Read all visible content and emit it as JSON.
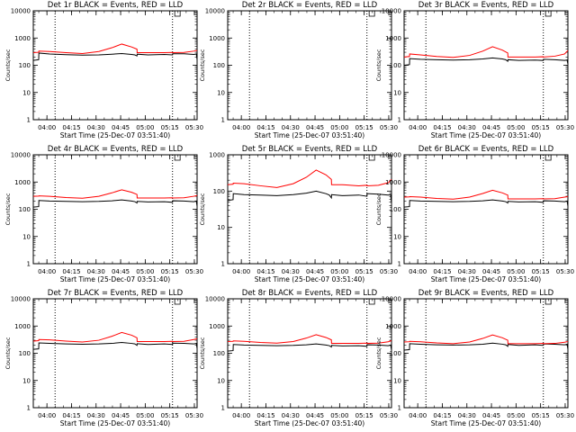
{
  "figure": {
    "background": "#ffffff"
  },
  "series_styles": {
    "events_color": "#000000",
    "lld_color": "#ff0000",
    "marker_color": "#000000"
  },
  "chart_data": [
    {
      "type": "line",
      "title": "Det 1r BLACK = Events, RED = LLD",
      "ylabel": "Counts/sec",
      "xlabel": "Start Time (25-Dec-07 03:51:40)",
      "x_tick_labels": [
        "04:00",
        "04:15",
        "04:30",
        "04:45",
        "05:00",
        "05:15",
        "05:30"
      ],
      "x_tick_minutes": [
        8.33,
        23.33,
        38.33,
        53.33,
        68.33,
        83.33,
        98.33
      ],
      "xlim": [
        0,
        100
      ],
      "y_scale": "log",
      "ylim": [
        1,
        10000
      ],
      "y_tick_labels": [
        "1",
        "10",
        "100",
        "1000",
        "10000"
      ],
      "vlines_minutes": [
        13.3,
        85.0
      ],
      "marker_minutes": 88.0,
      "series": [
        {
          "name": "Events",
          "x": [
            0,
            3.3,
            3.4,
            10,
            20,
            30,
            40,
            48,
            54,
            60,
            62,
            63.3,
            63.4,
            70,
            80,
            85,
            85.1,
            92,
            98,
            99.5,
            100
          ],
          "y": [
            150,
            160,
            280,
            260,
            245,
            235,
            240,
            255,
            270,
            250,
            240,
            220,
            255,
            240,
            250,
            240,
            265,
            265,
            250,
            260,
            160
          ]
        },
        {
          "name": "LLD",
          "x": [
            0,
            3.3,
            3.4,
            10,
            20,
            30,
            40,
            48,
            54,
            60,
            63.3,
            63.4,
            70,
            80,
            85,
            85.1,
            92,
            98,
            100
          ],
          "y": [
            290,
            300,
            330,
            320,
            290,
            270,
            320,
            440,
            600,
            470,
            390,
            290,
            290,
            290,
            295,
            290,
            295,
            330,
            350
          ]
        }
      ]
    },
    {
      "type": "line",
      "title": "Det 2r BLACK = Events, RED = LLD",
      "ylabel": "Counts/sec",
      "xlabel": "Start Time (25-Dec-07 03:51:40)",
      "x_tick_labels": [
        "04:00",
        "04:15",
        "04:30",
        "04:45",
        "05:00",
        "05:15",
        "05:30"
      ],
      "x_tick_minutes": [
        8.33,
        23.33,
        38.33,
        53.33,
        68.33,
        83.33,
        98.33
      ],
      "xlim": [
        0,
        100
      ],
      "y_scale": "log",
      "ylim": [
        1,
        10000
      ],
      "y_tick_labels": [
        "1",
        "10",
        "100",
        "1000",
        "10000"
      ],
      "vlines_minutes": [
        13.3,
        85.0
      ],
      "marker_minutes": 88.0,
      "series": []
    },
    {
      "type": "line",
      "title": "Det 3r BLACK = Events, RED = LLD",
      "ylabel": "Counts/sec",
      "xlabel": "Start Time (25-Dec-07 03:51:40)",
      "x_tick_labels": [
        "04:00",
        "04:15",
        "04:30",
        "04:45",
        "05:00",
        "05:15",
        "05:30"
      ],
      "x_tick_minutes": [
        8.33,
        23.33,
        38.33,
        53.33,
        68.33,
        83.33,
        98.33
      ],
      "xlim": [
        0,
        100
      ],
      "y_scale": "log",
      "ylim": [
        1,
        10000
      ],
      "y_tick_labels": [
        "1",
        "10",
        "100",
        "1000",
        "10000"
      ],
      "vlines_minutes": [
        13.3,
        85.0
      ],
      "marker_minutes": 88.0,
      "series": [
        {
          "name": "Events",
          "x": [
            0,
            3.3,
            3.4,
            10,
            20,
            30,
            40,
            48,
            54,
            60,
            62,
            63.3,
            63.4,
            70,
            80,
            85,
            85.1,
            92,
            98,
            99.5,
            100
          ],
          "y": [
            100,
            105,
            175,
            165,
            160,
            155,
            160,
            170,
            185,
            170,
            160,
            140,
            160,
            150,
            155,
            150,
            165,
            160,
            150,
            155,
            110
          ]
        },
        {
          "name": "LLD",
          "x": [
            0,
            3.3,
            3.4,
            10,
            20,
            30,
            40,
            48,
            54,
            60,
            63.3,
            63.4,
            70,
            80,
            85,
            85.1,
            92,
            98,
            100
          ],
          "y": [
            200,
            210,
            260,
            240,
            210,
            195,
            230,
            330,
            480,
            360,
            280,
            200,
            200,
            200,
            205,
            200,
            215,
            260,
            350
          ]
        }
      ]
    },
    {
      "type": "line",
      "title": "Det 4r BLACK = Events, RED = LLD",
      "ylabel": "Counts/sec",
      "xlabel": "Start Time (25-Dec-07 03:51:40)",
      "x_tick_labels": [
        "04:00",
        "04:15",
        "04:30",
        "04:45",
        "05:00",
        "05:15",
        "05:30"
      ],
      "x_tick_minutes": [
        8.33,
        23.33,
        38.33,
        53.33,
        68.33,
        83.33,
        98.33
      ],
      "xlim": [
        0,
        100
      ],
      "y_scale": "log",
      "ylim": [
        1,
        10000
      ],
      "y_tick_labels": [
        "1",
        "10",
        "100",
        "1000",
        "10000"
      ],
      "vlines_minutes": [
        13.3,
        85.0
      ],
      "marker_minutes": 88.0,
      "series": [
        {
          "name": "Events",
          "x": [
            0,
            3.3,
            3.4,
            10,
            20,
            30,
            40,
            48,
            54,
            60,
            62,
            63.3,
            63.4,
            70,
            80,
            85,
            85.1,
            92,
            98,
            99.5,
            100
          ],
          "y": [
            120,
            125,
            210,
            200,
            195,
            190,
            195,
            205,
            220,
            200,
            190,
            170,
            195,
            185,
            190,
            180,
            205,
            200,
            190,
            200,
            130
          ]
        },
        {
          "name": "LLD",
          "x": [
            0,
            3.3,
            3.4,
            10,
            20,
            30,
            40,
            48,
            54,
            60,
            63.3,
            63.4,
            70,
            80,
            85,
            85.1,
            92,
            98,
            100
          ],
          "y": [
            300,
            305,
            310,
            300,
            270,
            255,
            300,
            400,
            520,
            420,
            350,
            260,
            260,
            260,
            265,
            260,
            265,
            300,
            320
          ]
        }
      ]
    },
    {
      "type": "line",
      "title": "Det 5r BLACK = Events, RED = LLD",
      "ylabel": "Counts/sec",
      "xlabel": "Start Time (25-Dec-07 03:51:40)",
      "x_tick_labels": [
        "04:00",
        "04:15",
        "04:30",
        "04:45",
        "05:00",
        "05:15",
        "05:30"
      ],
      "x_tick_minutes": [
        8.33,
        23.33,
        38.33,
        53.33,
        68.33,
        83.33,
        98.33
      ],
      "xlim": [
        0,
        100
      ],
      "y_scale": "log",
      "ylim": [
        1,
        1000
      ],
      "y_tick_labels": [
        "1",
        "10",
        "100",
        "1000"
      ],
      "vlines_minutes": [
        13.3,
        85.0
      ],
      "marker_minutes": 88.0,
      "series": [
        {
          "name": "Events",
          "x": [
            0,
            3.3,
            3.4,
            10,
            20,
            30,
            40,
            48,
            54,
            60,
            62,
            63.3,
            63.4,
            70,
            80,
            85,
            85.1,
            92,
            98,
            99.5,
            100
          ],
          "y": [
            55,
            58,
            85,
            80,
            78,
            75,
            80,
            88,
            100,
            85,
            78,
            65,
            80,
            75,
            78,
            72,
            85,
            82,
            78,
            80,
            45
          ]
        },
        {
          "name": "LLD",
          "x": [
            0,
            3.3,
            3.4,
            10,
            20,
            30,
            40,
            48,
            54,
            60,
            63.3,
            63.4,
            70,
            80,
            85,
            85.1,
            92,
            98,
            100
          ],
          "y": [
            150,
            155,
            165,
            160,
            140,
            125,
            160,
            240,
            380,
            280,
            210,
            150,
            150,
            140,
            145,
            140,
            145,
            170,
            210
          ]
        }
      ]
    },
    {
      "type": "line",
      "title": "Det 6r BLACK = Events, RED = LLD",
      "ylabel": "Counts/sec",
      "xlabel": "Start Time (25-Dec-07 03:51:40)",
      "x_tick_labels": [
        "04:00",
        "04:15",
        "04:30",
        "04:45",
        "05:00",
        "05:15",
        "05:30"
      ],
      "x_tick_minutes": [
        8.33,
        23.33,
        38.33,
        53.33,
        68.33,
        83.33,
        98.33
      ],
      "xlim": [
        0,
        100
      ],
      "y_scale": "log",
      "ylim": [
        1,
        10000
      ],
      "y_tick_labels": [
        "1",
        "10",
        "100",
        "1000",
        "10000"
      ],
      "vlines_minutes": [
        13.3,
        85.0
      ],
      "marker_minutes": 88.0,
      "series": [
        {
          "name": "Events",
          "x": [
            0,
            3.3,
            3.4,
            10,
            20,
            30,
            40,
            48,
            54,
            60,
            62,
            63.3,
            63.4,
            70,
            80,
            85,
            85.1,
            92,
            98,
            99.5,
            100
          ],
          "y": [
            120,
            125,
            210,
            200,
            195,
            190,
            195,
            205,
            220,
            200,
            190,
            170,
            195,
            185,
            190,
            180,
            205,
            200,
            190,
            200,
            130
          ]
        },
        {
          "name": "LLD",
          "x": [
            0,
            3.3,
            3.4,
            10,
            20,
            30,
            40,
            48,
            54,
            60,
            63.3,
            63.4,
            70,
            80,
            85,
            85.1,
            92,
            98,
            100
          ],
          "y": [
            280,
            285,
            290,
            280,
            250,
            235,
            280,
            380,
            500,
            400,
            330,
            240,
            240,
            240,
            245,
            240,
            245,
            280,
            290
          ]
        }
      ]
    },
    {
      "type": "line",
      "title": "Det 7r BLACK = Events, RED = LLD",
      "ylabel": "Counts/sec",
      "xlabel": "Start Time (25-Dec-07 03:51:40)",
      "x_tick_labels": [
        "04:00",
        "04:15",
        "04:30",
        "04:45",
        "05:00",
        "05:15",
        "05:30"
      ],
      "x_tick_minutes": [
        8.33,
        23.33,
        38.33,
        53.33,
        68.33,
        83.33,
        98.33
      ],
      "xlim": [
        0,
        100
      ],
      "y_scale": "log",
      "ylim": [
        1,
        10000
      ],
      "y_tick_labels": [
        "1",
        "10",
        "100",
        "1000",
        "10000"
      ],
      "vlines_minutes": [
        13.3,
        85.0
      ],
      "marker_minutes": 88.0,
      "series": [
        {
          "name": "Events",
          "x": [
            0,
            3.3,
            3.4,
            10,
            20,
            30,
            40,
            48,
            54,
            60,
            62,
            63.3,
            63.4,
            70,
            80,
            85,
            85.1,
            92,
            98,
            99.5,
            100
          ],
          "y": [
            140,
            145,
            240,
            230,
            220,
            215,
            220,
            230,
            250,
            230,
            220,
            195,
            225,
            210,
            220,
            210,
            235,
            230,
            220,
            230,
            150
          ]
        },
        {
          "name": "LLD",
          "x": [
            0,
            3.3,
            3.4,
            10,
            20,
            30,
            40,
            48,
            54,
            60,
            63.3,
            63.4,
            70,
            80,
            85,
            85.1,
            92,
            98,
            100
          ],
          "y": [
            280,
            290,
            320,
            310,
            280,
            260,
            300,
            420,
            580,
            460,
            370,
            270,
            270,
            270,
            275,
            270,
            275,
            320,
            340
          ]
        }
      ]
    },
    {
      "type": "line",
      "title": "Det 8r BLACK = Events, RED = LLD",
      "ylabel": "Counts/sec",
      "xlabel": "Start Time (25-Dec-07 03:51:40)",
      "x_tick_labels": [
        "04:00",
        "04:15",
        "04:30",
        "04:45",
        "05:00",
        "05:15",
        "05:30"
      ],
      "x_tick_minutes": [
        8.33,
        23.33,
        38.33,
        53.33,
        68.33,
        83.33,
        98.33
      ],
      "xlim": [
        0,
        100
      ],
      "y_scale": "log",
      "ylim": [
        1,
        10000
      ],
      "y_tick_labels": [
        "1",
        "10",
        "100",
        "1000",
        "10000"
      ],
      "vlines_minutes": [
        13.3,
        85.0
      ],
      "marker_minutes": 88.0,
      "series": [
        {
          "name": "Events",
          "x": [
            0,
            3.3,
            3.4,
            10,
            20,
            30,
            40,
            48,
            54,
            60,
            62,
            63.3,
            63.4,
            70,
            80,
            85,
            85.1,
            92,
            98,
            99.5,
            100
          ],
          "y": [
            120,
            125,
            210,
            200,
            195,
            190,
            195,
            205,
            220,
            200,
            190,
            170,
            195,
            185,
            190,
            180,
            205,
            200,
            190,
            200,
            130
          ]
        },
        {
          "name": "LLD",
          "x": [
            0,
            3.3,
            3.4,
            10,
            20,
            30,
            40,
            48,
            54,
            60,
            63.3,
            63.4,
            70,
            80,
            85,
            85.1,
            92,
            98,
            100
          ],
          "y": [
            270,
            275,
            285,
            275,
            250,
            235,
            270,
            360,
            480,
            380,
            310,
            230,
            230,
            230,
            235,
            230,
            235,
            265,
            290
          ]
        }
      ]
    },
    {
      "type": "line",
      "title": "Det 9r BLACK = Events, RED = LLD",
      "ylabel": "Counts/sec",
      "xlabel": "Start Time (25-Dec-07 03:51:40)",
      "x_tick_labels": [
        "04:00",
        "04:15",
        "04:30",
        "04:45",
        "05:00",
        "05:15",
        "05:30"
      ],
      "x_tick_minutes": [
        8.33,
        23.33,
        38.33,
        53.33,
        68.33,
        83.33,
        98.33
      ],
      "xlim": [
        0,
        100
      ],
      "y_scale": "log",
      "ylim": [
        1,
        10000
      ],
      "y_tick_labels": [
        "1",
        "10",
        "100",
        "1000",
        "10000"
      ],
      "vlines_minutes": [
        13.3,
        85.0
      ],
      "marker_minutes": 88.0,
      "series": [
        {
          "name": "Events",
          "x": [
            0,
            3.3,
            3.4,
            10,
            20,
            30,
            40,
            48,
            54,
            60,
            62,
            63.3,
            63.4,
            70,
            80,
            85,
            85.1,
            92,
            98,
            99.5,
            100
          ],
          "y": [
            130,
            135,
            225,
            215,
            205,
            200,
            205,
            215,
            235,
            215,
            205,
            180,
            210,
            195,
            205,
            195,
            220,
            215,
            205,
            215,
            140
          ]
        },
        {
          "name": "LLD",
          "x": [
            0,
            3.3,
            3.4,
            10,
            20,
            30,
            40,
            48,
            54,
            60,
            63.3,
            63.4,
            70,
            80,
            85,
            85.1,
            92,
            98,
            100
          ],
          "y": [
            260,
            265,
            275,
            265,
            240,
            225,
            260,
            350,
            470,
            370,
            300,
            225,
            225,
            225,
            230,
            225,
            230,
            255,
            270
          ]
        }
      ]
    }
  ]
}
